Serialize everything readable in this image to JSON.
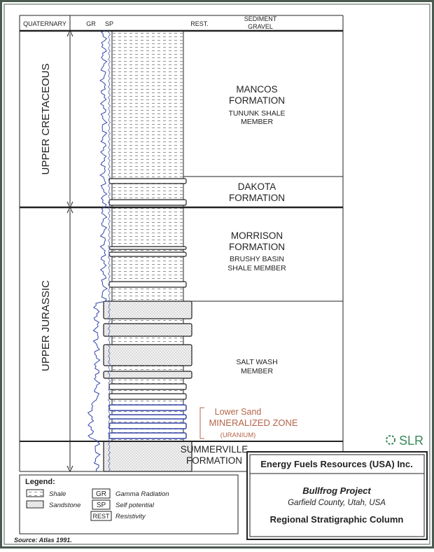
{
  "header": {
    "quaternary": "QUATERNARY",
    "gr": "GR",
    "sp": "SP",
    "rest": "REST.",
    "sediment": "SEDIMENT",
    "gravel": "GRAVEL"
  },
  "ages": [
    "UPPER CRETACEOUS",
    "UPPER JURASSIC"
  ],
  "formations": {
    "mancos": [
      "MANCOS",
      "FORMATION",
      "TUNUNK SHALE",
      "MEMBER"
    ],
    "dakota": [
      "DAKOTA",
      "FORMATION"
    ],
    "morrison": [
      "MORRISON",
      "FORMATION",
      "BRUSHY BASIN",
      "SHALE MEMBER"
    ],
    "salt_wash": [
      "SALT WASH",
      "MEMBER"
    ],
    "mineralized": [
      "Lower Sand",
      "MINERALIZED ZONE",
      "(URANIUM)"
    ],
    "summerville": [
      "SUMMERVILLE",
      "FORMATION"
    ]
  },
  "logo": "SLR",
  "legend": {
    "title": "Legend:",
    "shale": "Shale",
    "sandstone": "Sandstone",
    "gr": {
      "code": "GR",
      "label": "Gamma Radiation"
    },
    "sp": {
      "code": "SP",
      "label": "Self potential"
    },
    "rest": {
      "code": "REST",
      "label": "Resistivity"
    }
  },
  "title_block": {
    "company": "Energy Fuels Resources (USA) Inc.",
    "project": "Bullfrog Project",
    "location": "Garfield County, Utah, USA",
    "title": "Regional Stratigraphic Column"
  },
  "source": "Source:  Atlas 1991."
}
